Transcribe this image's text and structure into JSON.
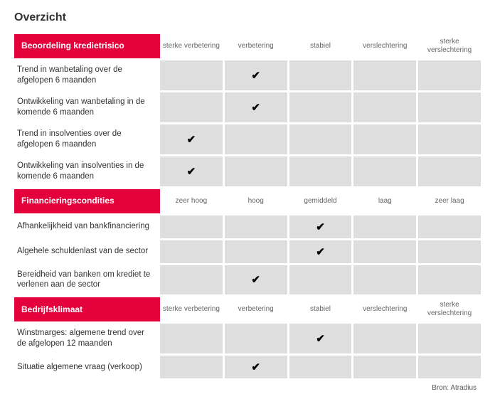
{
  "title": "Overzicht",
  "check_glyph": "✔",
  "colors": {
    "header_bg": "#e4003a",
    "header_text": "#ffffff",
    "cell_bg": "#dedede",
    "page_bg": "#ffffff",
    "text": "#333333"
  },
  "sections": [
    {
      "header": "Beoordeling kredietrisico",
      "columns": [
        "sterke verbetering",
        "verbetering",
        "stabiel",
        "verslechtering",
        "sterke verslechtering"
      ],
      "rows": [
        {
          "label": "Trend in wanbetaling over de afgelopen 6 maanden",
          "check_index": 1
        },
        {
          "label": "Ontwikkeling van wanbetaling in de komende 6 maanden",
          "check_index": 1
        },
        {
          "label": "Trend in insolventies over de afgelopen 6 maanden",
          "check_index": 0
        },
        {
          "label": "Ontwikkeling van insolventies in de komende 6 maanden",
          "check_index": 0
        }
      ]
    },
    {
      "header": "Financieringscondities",
      "columns": [
        "zeer hoog",
        "hoog",
        "gemiddeld",
        "laag",
        "zeer laag"
      ],
      "rows": [
        {
          "label": "Afhankelijkheid van bankfinanciering",
          "check_index": 2
        },
        {
          "label": "Algehele schuldenlast van de sector",
          "check_index": 2
        },
        {
          "label": "Bereidheid van banken om krediet te verlenen aan de sector",
          "check_index": 1
        }
      ]
    },
    {
      "header": "Bedrijfsklimaat",
      "columns": [
        "sterke verbetering",
        "verbetering",
        "stabiel",
        "verslechtering",
        "sterke verslechtering"
      ],
      "rows": [
        {
          "label": "Winstmarges: algemene trend over de afgelopen 12 maanden",
          "check_index": 2
        },
        {
          "label": "Situatie algemene vraag (verkoop)",
          "check_index": 1
        }
      ]
    }
  ],
  "source": "Bron: Atradius"
}
